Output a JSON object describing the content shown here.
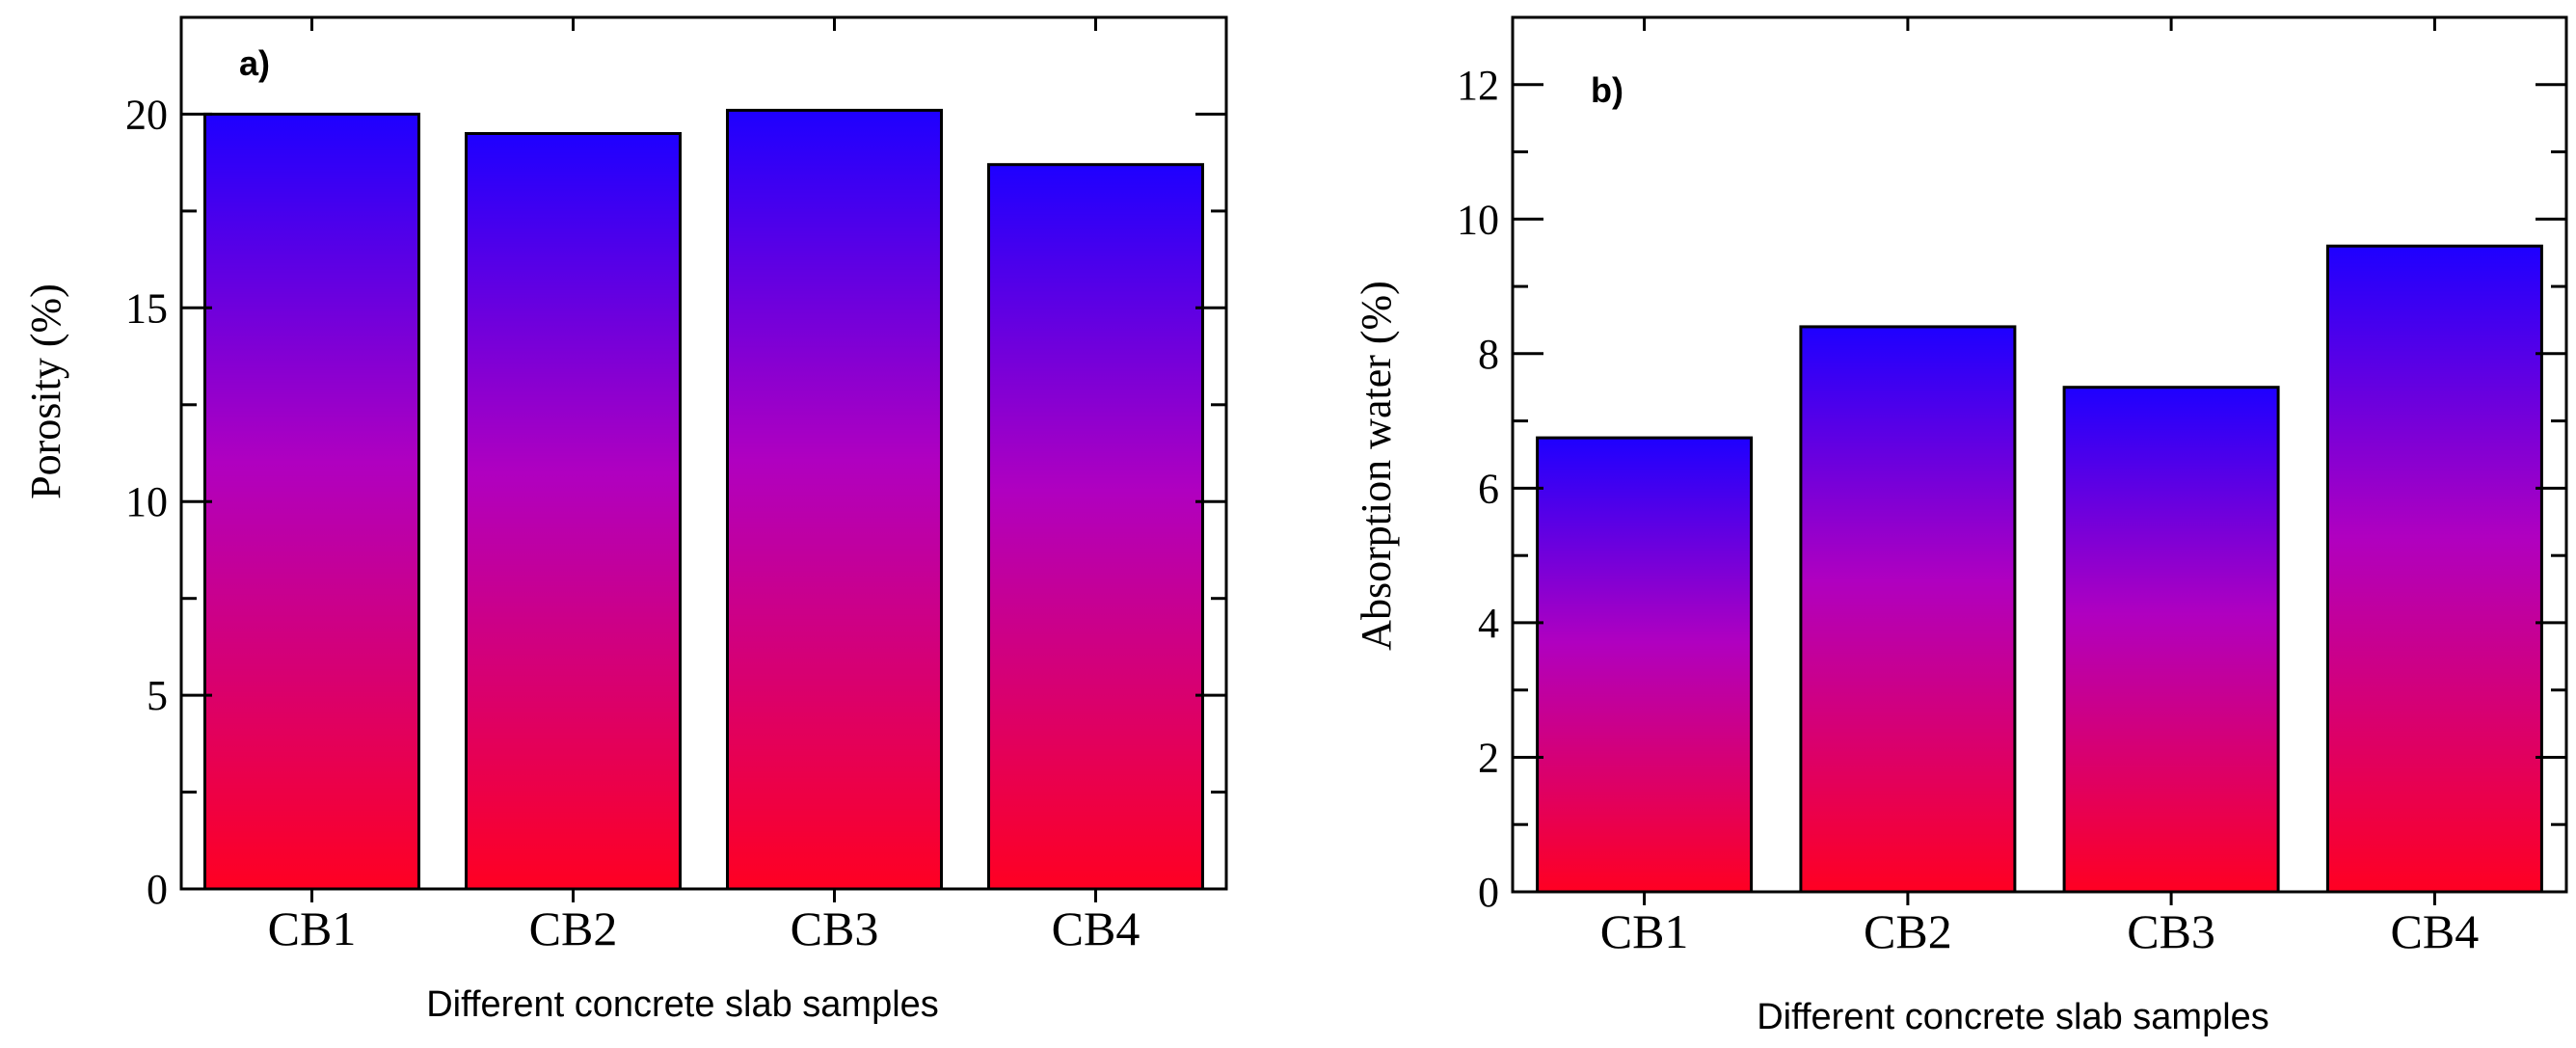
{
  "colors": {
    "bar_top": "#1e00ff",
    "bar_mid": "#b000c0",
    "bar_bottom": "#ff0022",
    "axis": "#000000",
    "background": "#ffffff"
  },
  "chart_data": [
    {
      "type": "bar",
      "panel_label": "a)",
      "categories": [
        "CB1",
        "CB2",
        "CB3",
        "CB4"
      ],
      "values": [
        20.0,
        19.5,
        20.1,
        18.7
      ],
      "xlabel": "Different concrete slab samples",
      "ylabel": "Porosity (%)",
      "ylim": [
        0,
        22.5
      ],
      "yticks": [
        0,
        5,
        10,
        15,
        20
      ],
      "yticklabels": [
        "0",
        "5",
        "10",
        "15",
        "20"
      ],
      "grid": false
    },
    {
      "type": "bar",
      "panel_label": "b)",
      "categories": [
        "CB1",
        "CB2",
        "CB3",
        "CB4"
      ],
      "values": [
        6.75,
        8.4,
        7.5,
        9.6
      ],
      "xlabel": "Different concrete slab samples",
      "ylabel": "Absorption water (%)",
      "ylim": [
        0,
        13
      ],
      "yticks": [
        0,
        2,
        4,
        6,
        8,
        10,
        12
      ],
      "yticklabels": [
        "0",
        "2",
        "4",
        "6",
        "8",
        "10",
        "12"
      ],
      "grid": false
    }
  ]
}
